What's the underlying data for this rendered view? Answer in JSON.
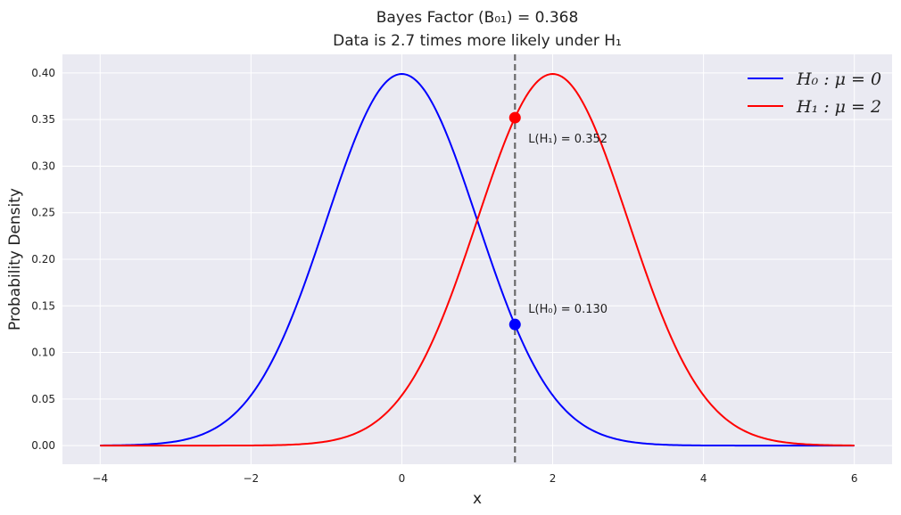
{
  "chart_data": {
    "type": "line",
    "title": "Bayes Factor (B₀₁) = 0.368",
    "subtitle": "Data is 2.7 times more likely under H₁",
    "xlabel": "x",
    "ylabel": "Probability Density",
    "xlim": [
      -4.5,
      6.5
    ],
    "ylim": [
      -0.02,
      0.42
    ],
    "xticks": [
      -4,
      -2,
      0,
      2,
      4,
      6
    ],
    "xtick_labels": [
      "−4",
      "−2",
      "0",
      "2",
      "4",
      "6"
    ],
    "yticks": [
      0.0,
      0.05,
      0.1,
      0.15,
      0.2,
      0.25,
      0.3,
      0.35,
      0.4
    ],
    "ytick_labels": [
      "0.00",
      "0.05",
      "0.10",
      "0.15",
      "0.20",
      "0.25",
      "0.30",
      "0.35",
      "0.40"
    ],
    "grid": true,
    "legend_position": "top-right",
    "x_range": [
      -4,
      6
    ],
    "series": [
      {
        "name": "H₀ : μ =  0",
        "distribution": "normal",
        "mean": 0,
        "sd": 1,
        "color": "#0000ff"
      },
      {
        "name": "H₁ : μ =  2",
        "distribution": "normal",
        "mean": 2,
        "sd": 1,
        "color": "#ff0000"
      }
    ],
    "observed_x": 1.5,
    "vline_color": "#6b6b6b",
    "points": [
      {
        "series": "H₁",
        "x": 1.5,
        "y": 0.352,
        "color": "#ff0000",
        "label": "L(H₁) =  0.352"
      },
      {
        "series": "H₀",
        "x": 1.5,
        "y": 0.13,
        "color": "#0000ff",
        "label": "L(H₀) =  0.130"
      }
    ],
    "background_color": "#eaeaf2",
    "grid_color": "#ffffff"
  }
}
